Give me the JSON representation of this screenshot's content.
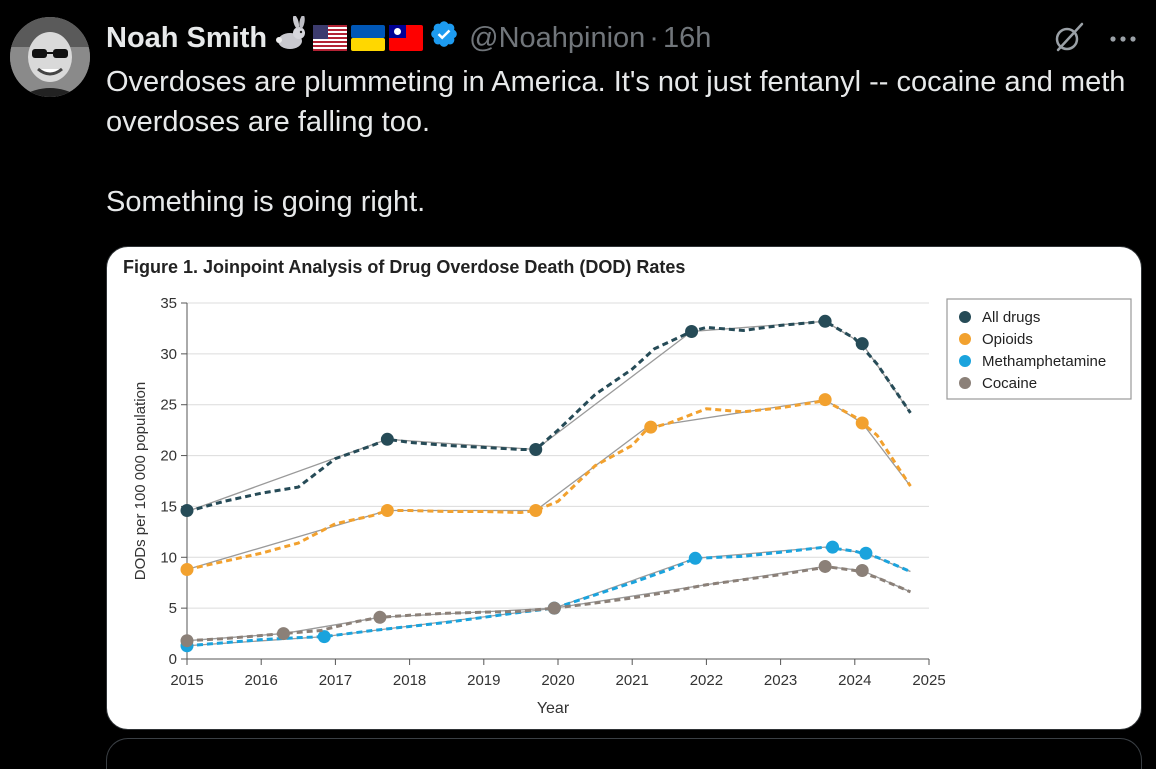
{
  "tweet": {
    "author_name": "Noah Smith",
    "handle": "@Noahpinion",
    "separator": "·",
    "time": "16h",
    "paragraphs": [
      "Overdoses are plummeting in America. It's not just fentanyl -- cocaine and meth overdoses are falling too.",
      "Something is going right."
    ]
  },
  "icons": {
    "emoji_badges": [
      "rabbit-icon",
      "us-flag-icon",
      "ukraine-flag-icon",
      "taiwan-flag-icon"
    ],
    "verified": "verified-badge-icon",
    "grok": "grok-icon",
    "more": "more-options-icon"
  },
  "colors": {
    "background": "#000000",
    "text": "#e7e9ea",
    "muted": "#71767b",
    "verified": "#1d9bf0"
  },
  "chart_data": {
    "type": "line",
    "title": "Figure 1.  Joinpoint Analysis of Drug Overdose Death (DOD) Rates",
    "xlabel": "Year",
    "ylabel": "DODs per 100 000 population",
    "xlim": [
      2015,
      2025
    ],
    "ylim": [
      0,
      35
    ],
    "xticks": [
      "2015",
      "2016",
      "2017",
      "2018",
      "2019",
      "2020",
      "2021",
      "2022",
      "2023",
      "2024",
      "2025"
    ],
    "yticks": [
      "0",
      "5",
      "10",
      "15",
      "20",
      "25",
      "30",
      "35"
    ],
    "grid": true,
    "legend_position": "top-right",
    "series": [
      {
        "name": "All drugs",
        "color": "#264b57",
        "observed": [
          [
            2015,
            14.5
          ],
          [
            2015.5,
            15.5
          ],
          [
            2016,
            16.3
          ],
          [
            2016.5,
            16.9
          ],
          [
            2017,
            19.7
          ],
          [
            2017.5,
            21.0
          ],
          [
            2017.7,
            21.6
          ],
          [
            2018,
            21.3
          ],
          [
            2018.5,
            21.0
          ],
          [
            2019,
            20.8
          ],
          [
            2019.5,
            20.6
          ],
          [
            2019.7,
            20.6
          ],
          [
            2020,
            22.5
          ],
          [
            2020.5,
            26.0
          ],
          [
            2021,
            28.5
          ],
          [
            2021.3,
            30.5
          ],
          [
            2021.8,
            32.2
          ],
          [
            2022,
            32.6
          ],
          [
            2022.5,
            32.3
          ],
          [
            2023,
            32.8
          ],
          [
            2023.6,
            33.2
          ],
          [
            2024,
            31.5
          ],
          [
            2024.3,
            29.0
          ],
          [
            2024.75,
            24.2
          ]
        ],
        "fitted": [
          [
            2015,
            14.5
          ],
          [
            2017.7,
            21.6
          ],
          [
            2019.7,
            20.6
          ],
          [
            2021.8,
            32.2
          ],
          [
            2023.6,
            33.2
          ],
          [
            2024.1,
            31.0
          ],
          [
            2024.75,
            24.2
          ]
        ],
        "joinpoints": [
          [
            2015,
            14.6
          ],
          [
            2017.7,
            21.6
          ],
          [
            2019.7,
            20.6
          ],
          [
            2021.8,
            32.2
          ],
          [
            2023.6,
            33.2
          ],
          [
            2024.1,
            31.0
          ]
        ]
      },
      {
        "name": "Opioids",
        "color": "#f2a12e",
        "observed": [
          [
            2015,
            8.8
          ],
          [
            2015.5,
            9.6
          ],
          [
            2016,
            10.4
          ],
          [
            2016.5,
            11.4
          ],
          [
            2017,
            13.3
          ],
          [
            2017.5,
            14.1
          ],
          [
            2017.7,
            14.6
          ],
          [
            2018,
            14.6
          ],
          [
            2018.5,
            14.5
          ],
          [
            2019,
            14.5
          ],
          [
            2019.5,
            14.4
          ],
          [
            2019.7,
            14.6
          ],
          [
            2020,
            15.5
          ],
          [
            2020.5,
            19.0
          ],
          [
            2021,
            21.0
          ],
          [
            2021.2,
            22.6
          ],
          [
            2021.5,
            23.2
          ],
          [
            2022,
            24.6
          ],
          [
            2022.5,
            24.3
          ],
          [
            2023,
            24.7
          ],
          [
            2023.6,
            25.4
          ],
          [
            2024,
            23.8
          ],
          [
            2024.3,
            22.0
          ],
          [
            2024.75,
            17.0
          ]
        ],
        "fitted": [
          [
            2015,
            8.8
          ],
          [
            2017.7,
            14.6
          ],
          [
            2019.7,
            14.6
          ],
          [
            2021.2,
            22.8
          ],
          [
            2023.6,
            25.5
          ],
          [
            2024.1,
            23.2
          ],
          [
            2024.75,
            17.0
          ]
        ],
        "joinpoints": [
          [
            2015,
            8.8
          ],
          [
            2017.7,
            14.6
          ],
          [
            2019.7,
            14.6
          ],
          [
            2021.25,
            22.8
          ],
          [
            2023.6,
            25.5
          ],
          [
            2024.1,
            23.2
          ]
        ]
      },
      {
        "name": "Methamphetamine",
        "color": "#1aa3dd",
        "observed": [
          [
            2015,
            1.3
          ],
          [
            2015.5,
            1.6
          ],
          [
            2016,
            1.9
          ],
          [
            2016.5,
            2.1
          ],
          [
            2016.85,
            2.2
          ],
          [
            2017.5,
            2.8
          ],
          [
            2018,
            3.2
          ],
          [
            2018.5,
            3.6
          ],
          [
            2019,
            4.1
          ],
          [
            2019.5,
            4.6
          ],
          [
            2019.95,
            5.0
          ],
          [
            2020.5,
            6.3
          ],
          [
            2021,
            7.5
          ],
          [
            2021.5,
            8.8
          ],
          [
            2021.85,
            9.9
          ],
          [
            2022.5,
            10.1
          ],
          [
            2023,
            10.5
          ],
          [
            2023.6,
            11.0
          ],
          [
            2024,
            10.6
          ],
          [
            2024.3,
            10.0
          ],
          [
            2024.75,
            8.6
          ]
        ],
        "fitted": [
          [
            2015,
            1.3
          ],
          [
            2016.85,
            2.2
          ],
          [
            2019.95,
            5.0
          ],
          [
            2021.85,
            9.9
          ],
          [
            2023.6,
            11.0
          ],
          [
            2024.15,
            10.4
          ],
          [
            2024.75,
            8.6
          ]
        ],
        "joinpoints": [
          [
            2015,
            1.3
          ],
          [
            2016.85,
            2.2
          ],
          [
            2019.95,
            5.0
          ],
          [
            2021.85,
            9.9
          ],
          [
            2023.7,
            11.0
          ],
          [
            2024.15,
            10.4
          ]
        ]
      },
      {
        "name": "Cocaine",
        "color": "#8b8078",
        "observed": [
          [
            2015,
            1.8
          ],
          [
            2015.5,
            2.0
          ],
          [
            2016.3,
            2.5
          ],
          [
            2016.8,
            2.8
          ],
          [
            2017.3,
            3.7
          ],
          [
            2017.6,
            4.1
          ],
          [
            2018,
            4.3
          ],
          [
            2018.5,
            4.5
          ],
          [
            2019,
            4.6
          ],
          [
            2019.5,
            4.7
          ],
          [
            2019.95,
            5.0
          ],
          [
            2020.5,
            5.5
          ],
          [
            2021,
            6.0
          ],
          [
            2021.5,
            6.6
          ],
          [
            2022,
            7.3
          ],
          [
            2022.5,
            7.8
          ],
          [
            2023,
            8.3
          ],
          [
            2023.5,
            8.9
          ],
          [
            2023.6,
            9.1
          ],
          [
            2024,
            8.7
          ],
          [
            2024.3,
            8.0
          ],
          [
            2024.75,
            6.6
          ]
        ],
        "fitted": [
          [
            2015,
            1.8
          ],
          [
            2016.3,
            2.5
          ],
          [
            2017.6,
            4.1
          ],
          [
            2019.95,
            5.0
          ],
          [
            2023.6,
            9.1
          ],
          [
            2024.1,
            8.7
          ],
          [
            2024.75,
            6.6
          ]
        ],
        "joinpoints": [
          [
            2015,
            1.8
          ],
          [
            2016.3,
            2.5
          ],
          [
            2017.6,
            4.1
          ],
          [
            2019.95,
            5.0
          ],
          [
            2023.6,
            9.1
          ],
          [
            2024.1,
            8.7
          ]
        ]
      }
    ]
  }
}
